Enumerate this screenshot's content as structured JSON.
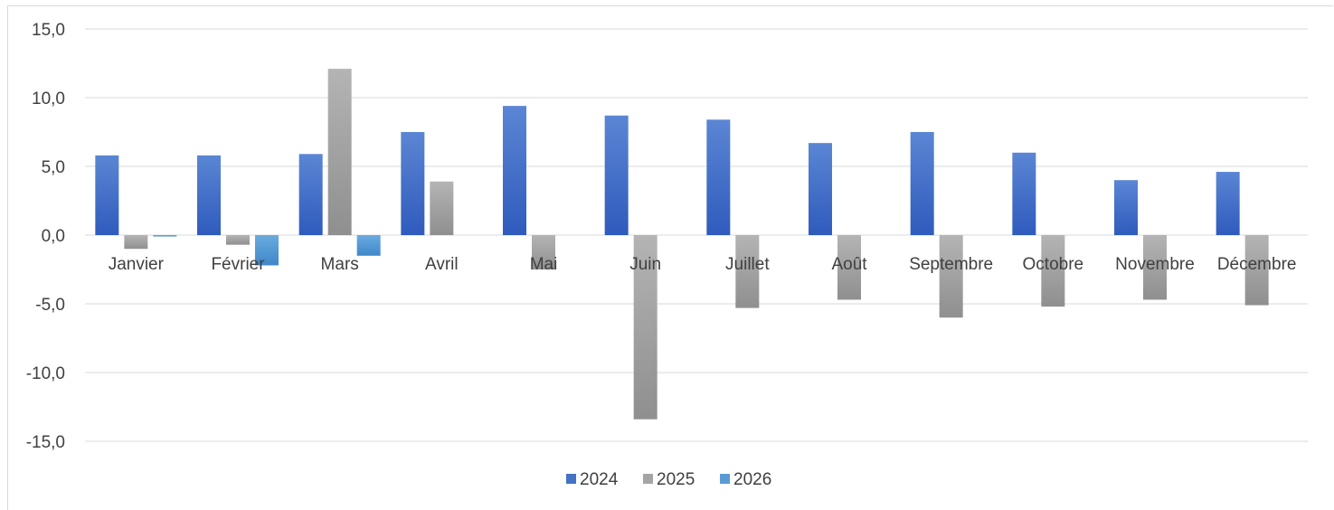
{
  "chart_data": {
    "type": "bar",
    "categories": [
      "Janvier",
      "Février",
      "Mars",
      "Avril",
      "Mai",
      "Juin",
      "Juillet",
      "Août",
      "Septembre",
      "Octobre",
      "Novembre",
      "Décembre"
    ],
    "series": [
      {
        "name": "2024",
        "color": "#4472c4",
        "values": [
          5.8,
          5.8,
          5.9,
          7.5,
          9.4,
          8.7,
          8.4,
          6.7,
          7.5,
          6.0,
          4.0,
          4.6
        ]
      },
      {
        "name": "2025",
        "color": "#a5a5a5",
        "values": [
          -1.0,
          -0.7,
          12.1,
          3.9,
          -2.5,
          -13.4,
          -5.3,
          -4.7,
          -6.0,
          -5.2,
          -4.7,
          -5.1
        ]
      },
      {
        "name": "2026",
        "color": "#5b9bd5",
        "values": [
          -0.1,
          -2.2,
          -1.5,
          null,
          null,
          null,
          null,
          null,
          null,
          null,
          null,
          null
        ]
      }
    ],
    "ylim": [
      -15,
      15
    ],
    "yticks": [
      "15,0",
      "10,0",
      "5,0",
      "0,0",
      "-5,0",
      "-10,0",
      "-15,0"
    ],
    "ytick_values": [
      15,
      10,
      5,
      0,
      -5,
      -10,
      -15
    ],
    "grid": true,
    "legend_position": "bottom",
    "title": "",
    "xlabel": "",
    "ylabel": ""
  }
}
